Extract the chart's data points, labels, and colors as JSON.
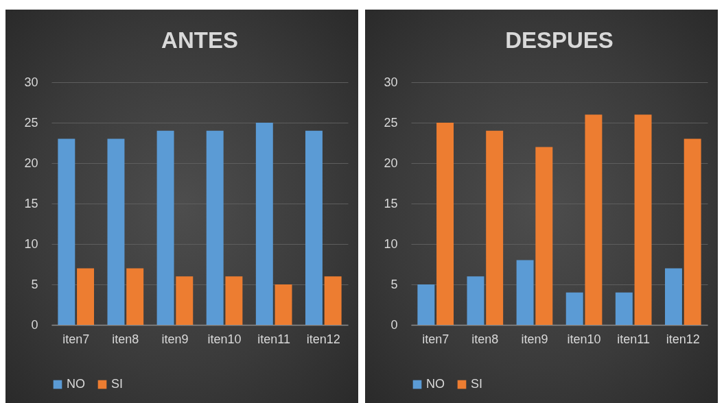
{
  "chart_data": [
    {
      "type": "bar",
      "title": "ANTES",
      "categories": [
        "iten7",
        "iten8",
        "iten9",
        "iten10",
        "iten11",
        "iten12"
      ],
      "series": [
        {
          "name": "NO",
          "color": "#5b9bd5",
          "values": [
            23,
            23,
            24,
            24,
            25,
            24
          ]
        },
        {
          "name": "SI",
          "color": "#ed7d31",
          "values": [
            7,
            7,
            6,
            6,
            5,
            6
          ]
        }
      ],
      "ylim": [
        0,
        30
      ],
      "yticks": [
        0,
        5,
        10,
        15,
        20,
        25,
        30
      ],
      "grid": "y",
      "legend": "bottom"
    },
    {
      "type": "bar",
      "title": "DESPUES",
      "categories": [
        "iten7",
        "iten8",
        "iten9",
        "iten10",
        "iten11",
        "iten12"
      ],
      "series": [
        {
          "name": "NO",
          "color": "#5b9bd5",
          "values": [
            5,
            6,
            8,
            4,
            4,
            7
          ]
        },
        {
          "name": "SI",
          "color": "#ed7d31",
          "values": [
            25,
            24,
            22,
            26,
            26,
            23
          ]
        }
      ],
      "ylim": [
        0,
        30
      ],
      "yticks": [
        0,
        5,
        10,
        15,
        20,
        25,
        30
      ],
      "grid": "y",
      "legend": "bottom"
    }
  ]
}
